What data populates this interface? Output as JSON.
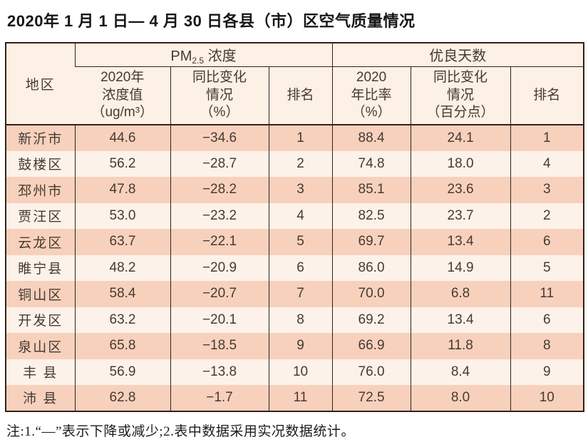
{
  "title": "2020年 1 月 1 日— 4 月 30 日各县（市）区空气质量情况",
  "note": "注:1.“—”表示下降或减少;2.表中数据采用实况数据统计。",
  "colors": {
    "border": "#30211a",
    "header_bg": "#fdf0e4",
    "row_odd_bg": "#f8d1bd",
    "row_even_bg": "#fdf2ea",
    "text": "#463a32"
  },
  "table": {
    "region_header": "地区",
    "groups": {
      "pm": {
        "prefix": "PM",
        "sub": "2.5",
        "suffix": " 浓度"
      },
      "good_days": "优良天数"
    },
    "sub_headers": [
      "2020年\n浓度值\n（ug/m³）",
      "同比变化\n情况\n（%）",
      "排名",
      "2020\n年比率\n（%）",
      "同比变化\n情况\n（百分点）",
      "排名"
    ],
    "rows": [
      {
        "region": "新沂市",
        "pm_value": "44.6",
        "pm_change": "−34.6",
        "pm_rank": "1",
        "ratio": "88.4",
        "ratio_change": "24.1",
        "ratio_rank": "1"
      },
      {
        "region": "鼓楼区",
        "pm_value": "56.2",
        "pm_change": "−28.7",
        "pm_rank": "2",
        "ratio": "74.8",
        "ratio_change": "18.0",
        "ratio_rank": "4"
      },
      {
        "region": "邳州市",
        "pm_value": "47.8",
        "pm_change": "−28.2",
        "pm_rank": "3",
        "ratio": "85.1",
        "ratio_change": "23.6",
        "ratio_rank": "3"
      },
      {
        "region": "贾汪区",
        "pm_value": "53.0",
        "pm_change": "−23.2",
        "pm_rank": "4",
        "ratio": "82.5",
        "ratio_change": "23.7",
        "ratio_rank": "2"
      },
      {
        "region": "云龙区",
        "pm_value": "63.7",
        "pm_change": "−22.1",
        "pm_rank": "5",
        "ratio": "69.7",
        "ratio_change": "13.4",
        "ratio_rank": "6"
      },
      {
        "region": "睢宁县",
        "pm_value": "48.2",
        "pm_change": "−20.9",
        "pm_rank": "6",
        "ratio": "86.0",
        "ratio_change": "14.9",
        "ratio_rank": "5"
      },
      {
        "region": "铜山区",
        "pm_value": "58.4",
        "pm_change": "−20.7",
        "pm_rank": "7",
        "ratio": "70.0",
        "ratio_change": "6.8",
        "ratio_rank": "11"
      },
      {
        "region": "开发区",
        "pm_value": "63.2",
        "pm_change": "−20.1",
        "pm_rank": "8",
        "ratio": "69.2",
        "ratio_change": "13.4",
        "ratio_rank": "6"
      },
      {
        "region": "泉山区",
        "pm_value": "65.8",
        "pm_change": "−18.5",
        "pm_rank": "9",
        "ratio": "66.9",
        "ratio_change": "11.8",
        "ratio_rank": "8"
      },
      {
        "region": "丰 县",
        "pm_value": "56.9",
        "pm_change": "−13.8",
        "pm_rank": "10",
        "ratio": "76.0",
        "ratio_change": "8.4",
        "ratio_rank": "9"
      },
      {
        "region": "沛 县",
        "pm_value": "62.8",
        "pm_change": "−1.7",
        "pm_rank": "11",
        "ratio": "72.5",
        "ratio_change": "8.0",
        "ratio_rank": "10"
      }
    ]
  }
}
